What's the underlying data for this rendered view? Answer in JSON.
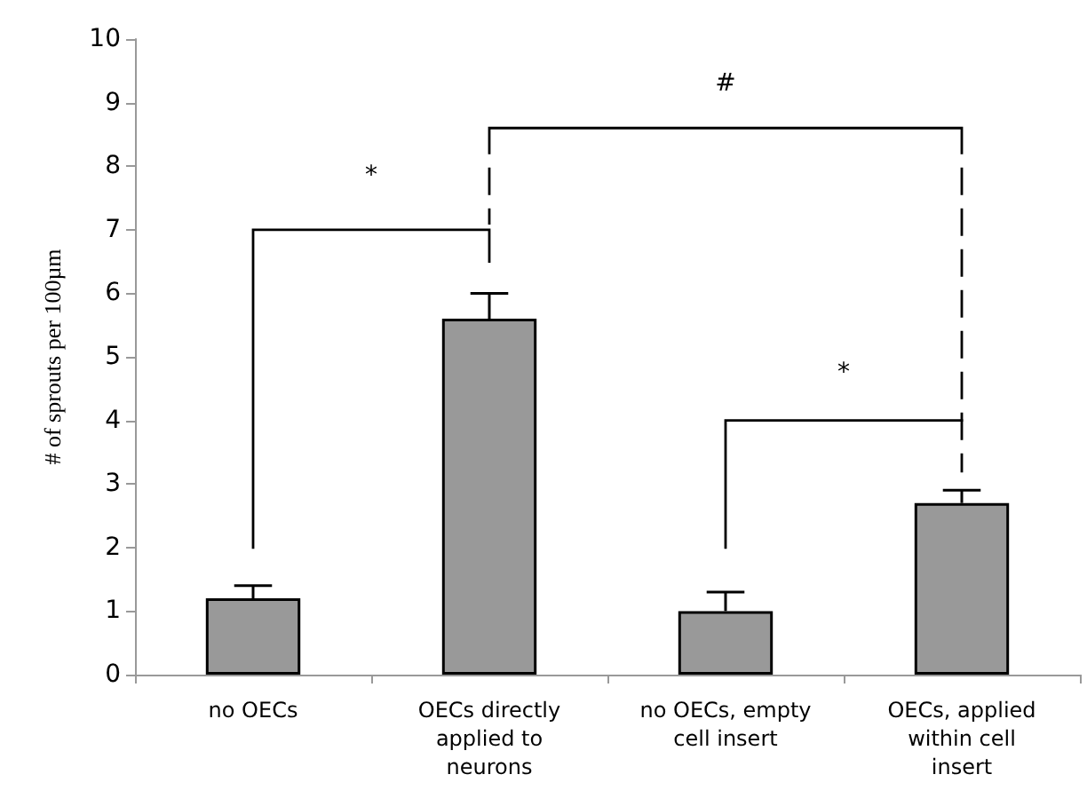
{
  "chart_data": {
    "type": "bar",
    "ylabel": "# of sprouts per 100µm",
    "categories": [
      "no OECs",
      "OECs directly applied to neurons",
      "no OECs, empty cell insert",
      "OECs, applied within cell insert"
    ],
    "values": [
      1.2,
      5.6,
      1.0,
      2.7
    ],
    "color": "#999999",
    "errors": [
      [
        1.2,
        1.4
      ],
      [
        5.6,
        6.0
      ],
      [
        1.0,
        1.3
      ],
      [
        2.7,
        2.9
      ]
    ],
    "ylim": [
      0,
      10
    ],
    "yticks": [
      0,
      1,
      2,
      3,
      4,
      5,
      6,
      7,
      8,
      9,
      10
    ],
    "grid": false,
    "annotations": [
      "*",
      "#",
      "*"
    ]
  }
}
